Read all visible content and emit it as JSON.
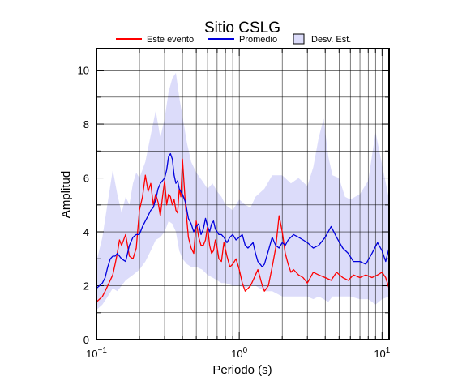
{
  "chart_data": {
    "type": "line",
    "title": "Sitio CSLG",
    "xlabel": "Periodo (s)",
    "ylabel": "Amplitud",
    "x_scale": "log",
    "xlim": [
      0.1,
      11.2
    ],
    "ylim": [
      0,
      10.8
    ],
    "x_ticks": [
      {
        "value": 0.1,
        "base": "10",
        "exp": "−1"
      },
      {
        "value": 1,
        "base": "10",
        "exp": "0"
      },
      {
        "value": 10,
        "base": "10",
        "exp": "1"
      }
    ],
    "y_ticks": [
      0,
      2,
      4,
      6,
      8,
      10
    ],
    "grid": true,
    "legend_position": "top",
    "legend": [
      {
        "label": "Este evento",
        "kind": "line",
        "color": "#ff0000"
      },
      {
        "label": "Promedio",
        "kind": "line",
        "color": "#0000dd"
      },
      {
        "label": "Desv. Est.",
        "kind": "patch",
        "color": "#dcdcfa"
      }
    ],
    "band": {
      "name": "Desv. Est.",
      "color": "#dcdcfa",
      "x": [
        0.1,
        0.11,
        0.12,
        0.13,
        0.14,
        0.15,
        0.16,
        0.17,
        0.18,
        0.19,
        0.2,
        0.22,
        0.24,
        0.26,
        0.28,
        0.3,
        0.32,
        0.34,
        0.36,
        0.38,
        0.4,
        0.43,
        0.46,
        0.5,
        0.55,
        0.6,
        0.65,
        0.7,
        0.75,
        0.8,
        0.9,
        1.0,
        1.1,
        1.2,
        1.3,
        1.5,
        1.7,
        2.0,
        2.3,
        2.6,
        3.0,
        3.3,
        3.6,
        3.9,
        4.2,
        4.5,
        5.0,
        5.5,
        6.0,
        7.0,
        8.0,
        9.0,
        10.0,
        11.2
      ],
      "upper": [
        2.9,
        3.8,
        5.1,
        6.3,
        5.4,
        4.7,
        5.3,
        5.0,
        5.8,
        6.2,
        6.0,
        6.6,
        7.6,
        8.5,
        7.5,
        8.2,
        9.2,
        9.7,
        9.9,
        9.0,
        8.3,
        7.3,
        6.6,
        6.2,
        5.9,
        5.6,
        5.8,
        5.5,
        5.3,
        5.0,
        4.8,
        5.2,
        5.0,
        4.9,
        5.3,
        5.6,
        6.1,
        6.1,
        5.8,
        6.0,
        5.7,
        6.4,
        7.5,
        8.2,
        6.8,
        6.1,
        6.0,
        5.3,
        5.2,
        5.4,
        5.9,
        7.7,
        6.5,
        5.2
      ],
      "lower": [
        1.1,
        1.3,
        1.6,
        1.9,
        1.8,
        2.0,
        2.2,
        2.3,
        2.4,
        2.5,
        2.6,
        2.9,
        3.3,
        3.7,
        3.8,
        4.0,
        4.4,
        4.3,
        4.0,
        3.3,
        3.0,
        2.8,
        2.7,
        2.7,
        2.6,
        2.4,
        2.3,
        2.2,
        2.1,
        2.1,
        2.0,
        2.0,
        1.9,
        2.0,
        2.0,
        1.8,
        1.8,
        1.6,
        1.6,
        1.6,
        1.6,
        1.5,
        1.6,
        1.5,
        1.4,
        1.6,
        1.6,
        1.6,
        1.6,
        1.5,
        1.5,
        1.3,
        1.5,
        1.6
      ]
    },
    "series": [
      {
        "name": "Este evento",
        "color": "#ff0000",
        "x": [
          0.1,
          0.105,
          0.11,
          0.115,
          0.12,
          0.13,
          0.135,
          0.14,
          0.145,
          0.15,
          0.16,
          0.17,
          0.18,
          0.19,
          0.2,
          0.21,
          0.22,
          0.23,
          0.24,
          0.25,
          0.26,
          0.27,
          0.28,
          0.29,
          0.3,
          0.31,
          0.32,
          0.33,
          0.34,
          0.35,
          0.36,
          0.37,
          0.38,
          0.39,
          0.4,
          0.42,
          0.44,
          0.46,
          0.48,
          0.5,
          0.52,
          0.54,
          0.56,
          0.58,
          0.6,
          0.62,
          0.64,
          0.66,
          0.68,
          0.7,
          0.72,
          0.75,
          0.78,
          0.82,
          0.86,
          0.9,
          0.95,
          1.0,
          1.05,
          1.1,
          1.15,
          1.2,
          1.25,
          1.3,
          1.35,
          1.4,
          1.45,
          1.5,
          1.6,
          1.7,
          1.8,
          1.9,
          2.0,
          2.1,
          2.2,
          2.3,
          2.4,
          2.6,
          2.8,
          3.0,
          3.3,
          3.6,
          4.0,
          4.4,
          4.8,
          5.3,
          5.8,
          6.3,
          7.0,
          7.7,
          8.5,
          9.3,
          10.0,
          10.6,
          11.2
        ],
        "y": [
          1.4,
          1.5,
          1.6,
          1.8,
          2.0,
          2.4,
          2.8,
          3.2,
          3.7,
          3.5,
          3.9,
          3.1,
          3.0,
          3.4,
          4.8,
          5.3,
          6.1,
          5.5,
          5.8,
          5.0,
          5.4,
          5.1,
          4.6,
          5.3,
          5.9,
          5.0,
          5.4,
          5.3,
          5.0,
          5.2,
          4.8,
          4.7,
          5.6,
          5.3,
          6.7,
          5.0,
          3.8,
          3.4,
          3.2,
          4.4,
          3.8,
          3.5,
          3.5,
          3.7,
          4.2,
          3.5,
          3.2,
          3.3,
          3.7,
          3.4,
          3.0,
          2.9,
          3.6,
          3.1,
          2.7,
          2.8,
          3.0,
          2.6,
          2.1,
          1.8,
          1.9,
          2.0,
          2.2,
          2.4,
          2.6,
          2.3,
          2.0,
          1.8,
          2.0,
          2.7,
          3.4,
          4.6,
          4.0,
          3.2,
          2.8,
          2.5,
          2.6,
          2.4,
          2.3,
          2.1,
          2.5,
          2.4,
          2.3,
          2.2,
          2.5,
          2.3,
          2.2,
          2.4,
          2.3,
          2.4,
          2.3,
          2.4,
          2.5,
          2.3,
          1.9
        ]
      },
      {
        "name": "Promedio",
        "color": "#0000dd",
        "x": [
          0.1,
          0.105,
          0.11,
          0.115,
          0.12,
          0.125,
          0.13,
          0.135,
          0.14,
          0.15,
          0.16,
          0.17,
          0.18,
          0.19,
          0.2,
          0.21,
          0.22,
          0.23,
          0.24,
          0.25,
          0.26,
          0.27,
          0.28,
          0.29,
          0.3,
          0.31,
          0.32,
          0.33,
          0.34,
          0.35,
          0.36,
          0.37,
          0.38,
          0.39,
          0.4,
          0.42,
          0.44,
          0.46,
          0.48,
          0.5,
          0.52,
          0.54,
          0.56,
          0.58,
          0.6,
          0.62,
          0.64,
          0.66,
          0.68,
          0.7,
          0.72,
          0.75,
          0.78,
          0.82,
          0.86,
          0.9,
          0.95,
          1.0,
          1.05,
          1.1,
          1.15,
          1.2,
          1.25,
          1.3,
          1.35,
          1.4,
          1.45,
          1.5,
          1.6,
          1.7,
          1.8,
          1.9,
          2.0,
          2.1,
          2.2,
          2.3,
          2.4,
          2.6,
          2.8,
          3.0,
          3.3,
          3.6,
          4.0,
          4.4,
          4.8,
          5.3,
          5.8,
          6.3,
          7.0,
          7.7,
          8.5,
          9.3,
          10.0,
          10.6,
          11.2
        ],
        "y": [
          1.9,
          2.0,
          2.1,
          2.3,
          2.7,
          3.0,
          3.1,
          3.1,
          3.2,
          3.0,
          2.9,
          3.5,
          3.8,
          3.9,
          3.9,
          4.2,
          4.4,
          4.6,
          4.8,
          4.9,
          5.2,
          5.6,
          5.8,
          5.9,
          6.0,
          6.3,
          6.8,
          6.9,
          6.7,
          6.1,
          5.8,
          5.9,
          5.6,
          5.5,
          5.4,
          5.1,
          4.5,
          4.3,
          4.0,
          4.2,
          4.3,
          3.9,
          4.1,
          4.5,
          4.2,
          4.0,
          4.3,
          4.4,
          4.1,
          4.0,
          3.9,
          3.9,
          3.8,
          3.6,
          3.8,
          3.9,
          3.7,
          3.8,
          3.9,
          3.5,
          3.4,
          3.5,
          3.6,
          3.2,
          2.9,
          2.8,
          2.7,
          2.8,
          3.3,
          3.8,
          3.5,
          3.4,
          3.6,
          3.5,
          3.7,
          3.8,
          3.9,
          3.8,
          3.7,
          3.6,
          3.4,
          3.5,
          3.8,
          4.2,
          3.8,
          3.4,
          3.2,
          2.9,
          2.9,
          2.8,
          3.2,
          3.6,
          3.3,
          2.9,
          3.4
        ]
      }
    ]
  }
}
